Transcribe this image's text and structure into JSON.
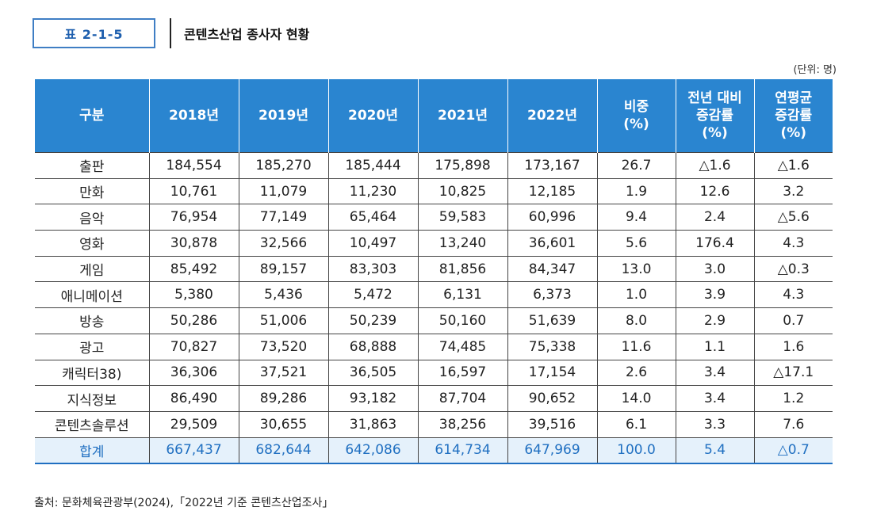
{
  "header": {
    "table_number": "표 2-1-5",
    "title": "콘텐츠산업 종사자 현황",
    "unit": "(단위: 명)"
  },
  "table": {
    "columns": [
      [
        "구분"
      ],
      [
        "2018년"
      ],
      [
        "2019년"
      ],
      [
        "2020년"
      ],
      [
        "2021년"
      ],
      [
        "2022년"
      ],
      [
        "비중",
        "(%)"
      ],
      [
        "전년 대비",
        "증감률",
        "(%)"
      ],
      [
        "연평균",
        "증감률",
        "(%)"
      ]
    ],
    "rows": [
      [
        "출판",
        "184,554",
        "185,270",
        "185,444",
        "175,898",
        "173,167",
        "26.7",
        "△1.6",
        "△1.6"
      ],
      [
        "만화",
        "10,761",
        "11,079",
        "11,230",
        "10,825",
        "12,185",
        "1.9",
        "12.6",
        "3.2"
      ],
      [
        "음악",
        "76,954",
        "77,149",
        "65,464",
        "59,583",
        "60,996",
        "9.4",
        "2.4",
        "△5.6"
      ],
      [
        "영화",
        "30,878",
        "32,566",
        "10,497",
        "13,240",
        "36,601",
        "5.6",
        "176.4",
        "4.3"
      ],
      [
        "게임",
        "85,492",
        "89,157",
        "83,303",
        "81,856",
        "84,347",
        "13.0",
        "3.0",
        "△0.3"
      ],
      [
        "애니메이션",
        "5,380",
        "5,436",
        "5,472",
        "6,131",
        "6,373",
        "1.0",
        "3.9",
        "4.3"
      ],
      [
        "방송",
        "50,286",
        "51,006",
        "50,239",
        "50,160",
        "51,639",
        "8.0",
        "2.9",
        "0.7"
      ],
      [
        "광고",
        "70,827",
        "73,520",
        "68,888",
        "74,485",
        "75,338",
        "11.6",
        "1.1",
        "1.6"
      ],
      [
        "캐릭터38)",
        "36,306",
        "37,521",
        "36,505",
        "16,597",
        "17,154",
        "2.6",
        "3.4",
        "△17.1"
      ],
      [
        "지식정보",
        "86,490",
        "89,286",
        "93,182",
        "87,704",
        "90,652",
        "14.0",
        "3.4",
        "1.2"
      ],
      [
        "콘텐츠솔루션",
        "29,509",
        "30,655",
        "31,863",
        "38,256",
        "39,516",
        "6.1",
        "3.3",
        "7.6"
      ]
    ],
    "total": [
      "합계",
      "667,437",
      "682,644",
      "642,086",
      "614,734",
      "647,969",
      "100.0",
      "5.4",
      "△0.7"
    ]
  },
  "footer": {
    "source": "출처: 문화체육관광부(2024),「2022년 기준 콘텐츠산업조사」"
  },
  "colors": {
    "header_bg": "#2a85d0",
    "accent": "#1f6fc1",
    "total_bg": "#e5f1fb"
  }
}
